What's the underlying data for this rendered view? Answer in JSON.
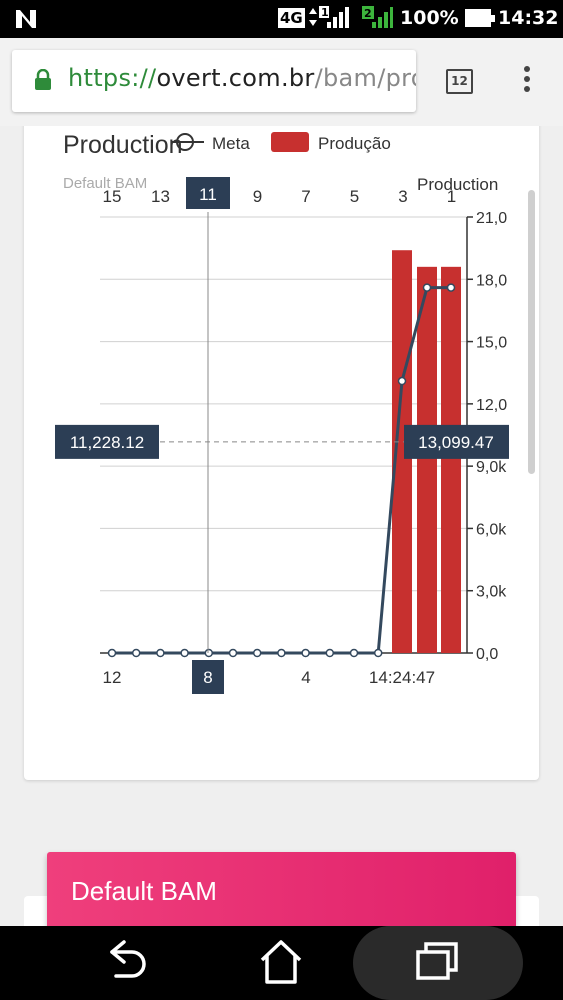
{
  "status_bar": {
    "network": "4G",
    "sim1": "1",
    "sim2": "2",
    "battery": "100%",
    "time": "14:32"
  },
  "browser": {
    "url_scheme": "https://",
    "url_host": "overt.com.br",
    "url_path": "/bam/proc",
    "tab_count": "12"
  },
  "card": {
    "title": "Production",
    "subtitle": "Default BAM"
  },
  "colors": {
    "bar": "#c7302f",
    "line": "#34495e",
    "tooltip_bg": "#2c3e55"
  },
  "chart_data": {
    "type": "bar",
    "legend": [
      {
        "name": "Meta",
        "style": "line-with-circle"
      },
      {
        "name": "Produção",
        "style": "bar"
      }
    ],
    "top_axis_ticks": [
      "15",
      "13",
      "11",
      "9",
      "7",
      "5",
      "3",
      "1"
    ],
    "top_axis_label": "Production",
    "bottom_axis_ticks": [
      "12",
      "8",
      "4",
      "14:24:47"
    ],
    "right_axis_ticks": [
      "0,0",
      "3,0k",
      "6,0k",
      "9,0k",
      "12,0",
      "15,0",
      "18,0",
      "21,0"
    ],
    "ylim": [
      0,
      21000
    ],
    "series": [
      {
        "name": "Produção",
        "type": "bar",
        "values": [
          19400,
          18600,
          18600
        ]
      },
      {
        "name": "Meta",
        "type": "line",
        "values": [
          0,
          0,
          0,
          0,
          0,
          0,
          0,
          0,
          0,
          0,
          0,
          0,
          13099.47,
          17600,
          17600
        ]
      }
    ],
    "crosshair": {
      "top_label": "11",
      "bottom_label": "8",
      "left_value": "11,228.12",
      "right_value": "13,099.47"
    }
  },
  "bottom_section": {
    "title": "Default BAM"
  },
  "nav": {
    "back": "back-icon",
    "home": "home-icon",
    "recents": "recents-icon"
  }
}
